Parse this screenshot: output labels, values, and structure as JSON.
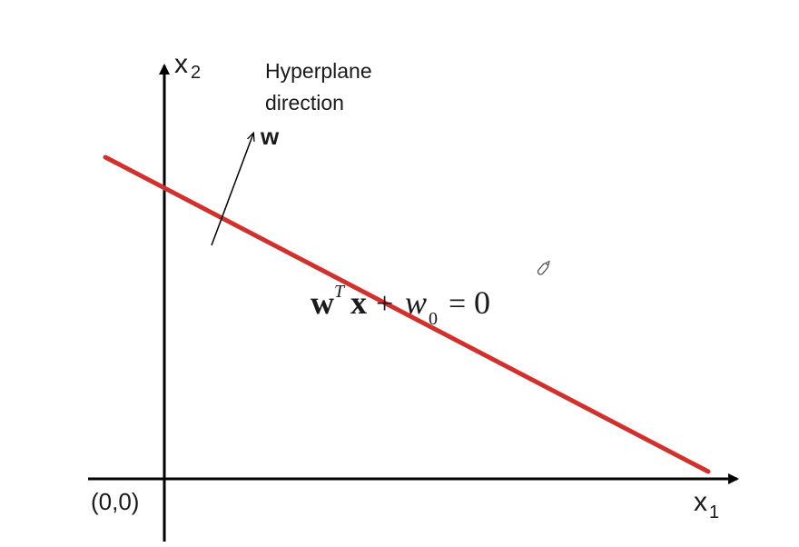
{
  "diagram": {
    "axis_x_label": "x",
    "axis_x_subscript": "1",
    "axis_y_label": "x",
    "axis_y_subscript": "2",
    "origin_label": "(0,0)",
    "annotation_line1": "Hyperplane",
    "annotation_line2": "direction",
    "vector_label": "w",
    "equation": {
      "w": "w",
      "T": "T",
      "x": "x",
      "plus": "+",
      "w0": "w",
      "w0_sub": "0",
      "equals": "=",
      "zero": "0"
    },
    "colors": {
      "hyperplane": "#d0312d",
      "axes": "#000000",
      "text": "#1a1a1a"
    },
    "icons": [
      "pencil-cursor-icon"
    ]
  }
}
